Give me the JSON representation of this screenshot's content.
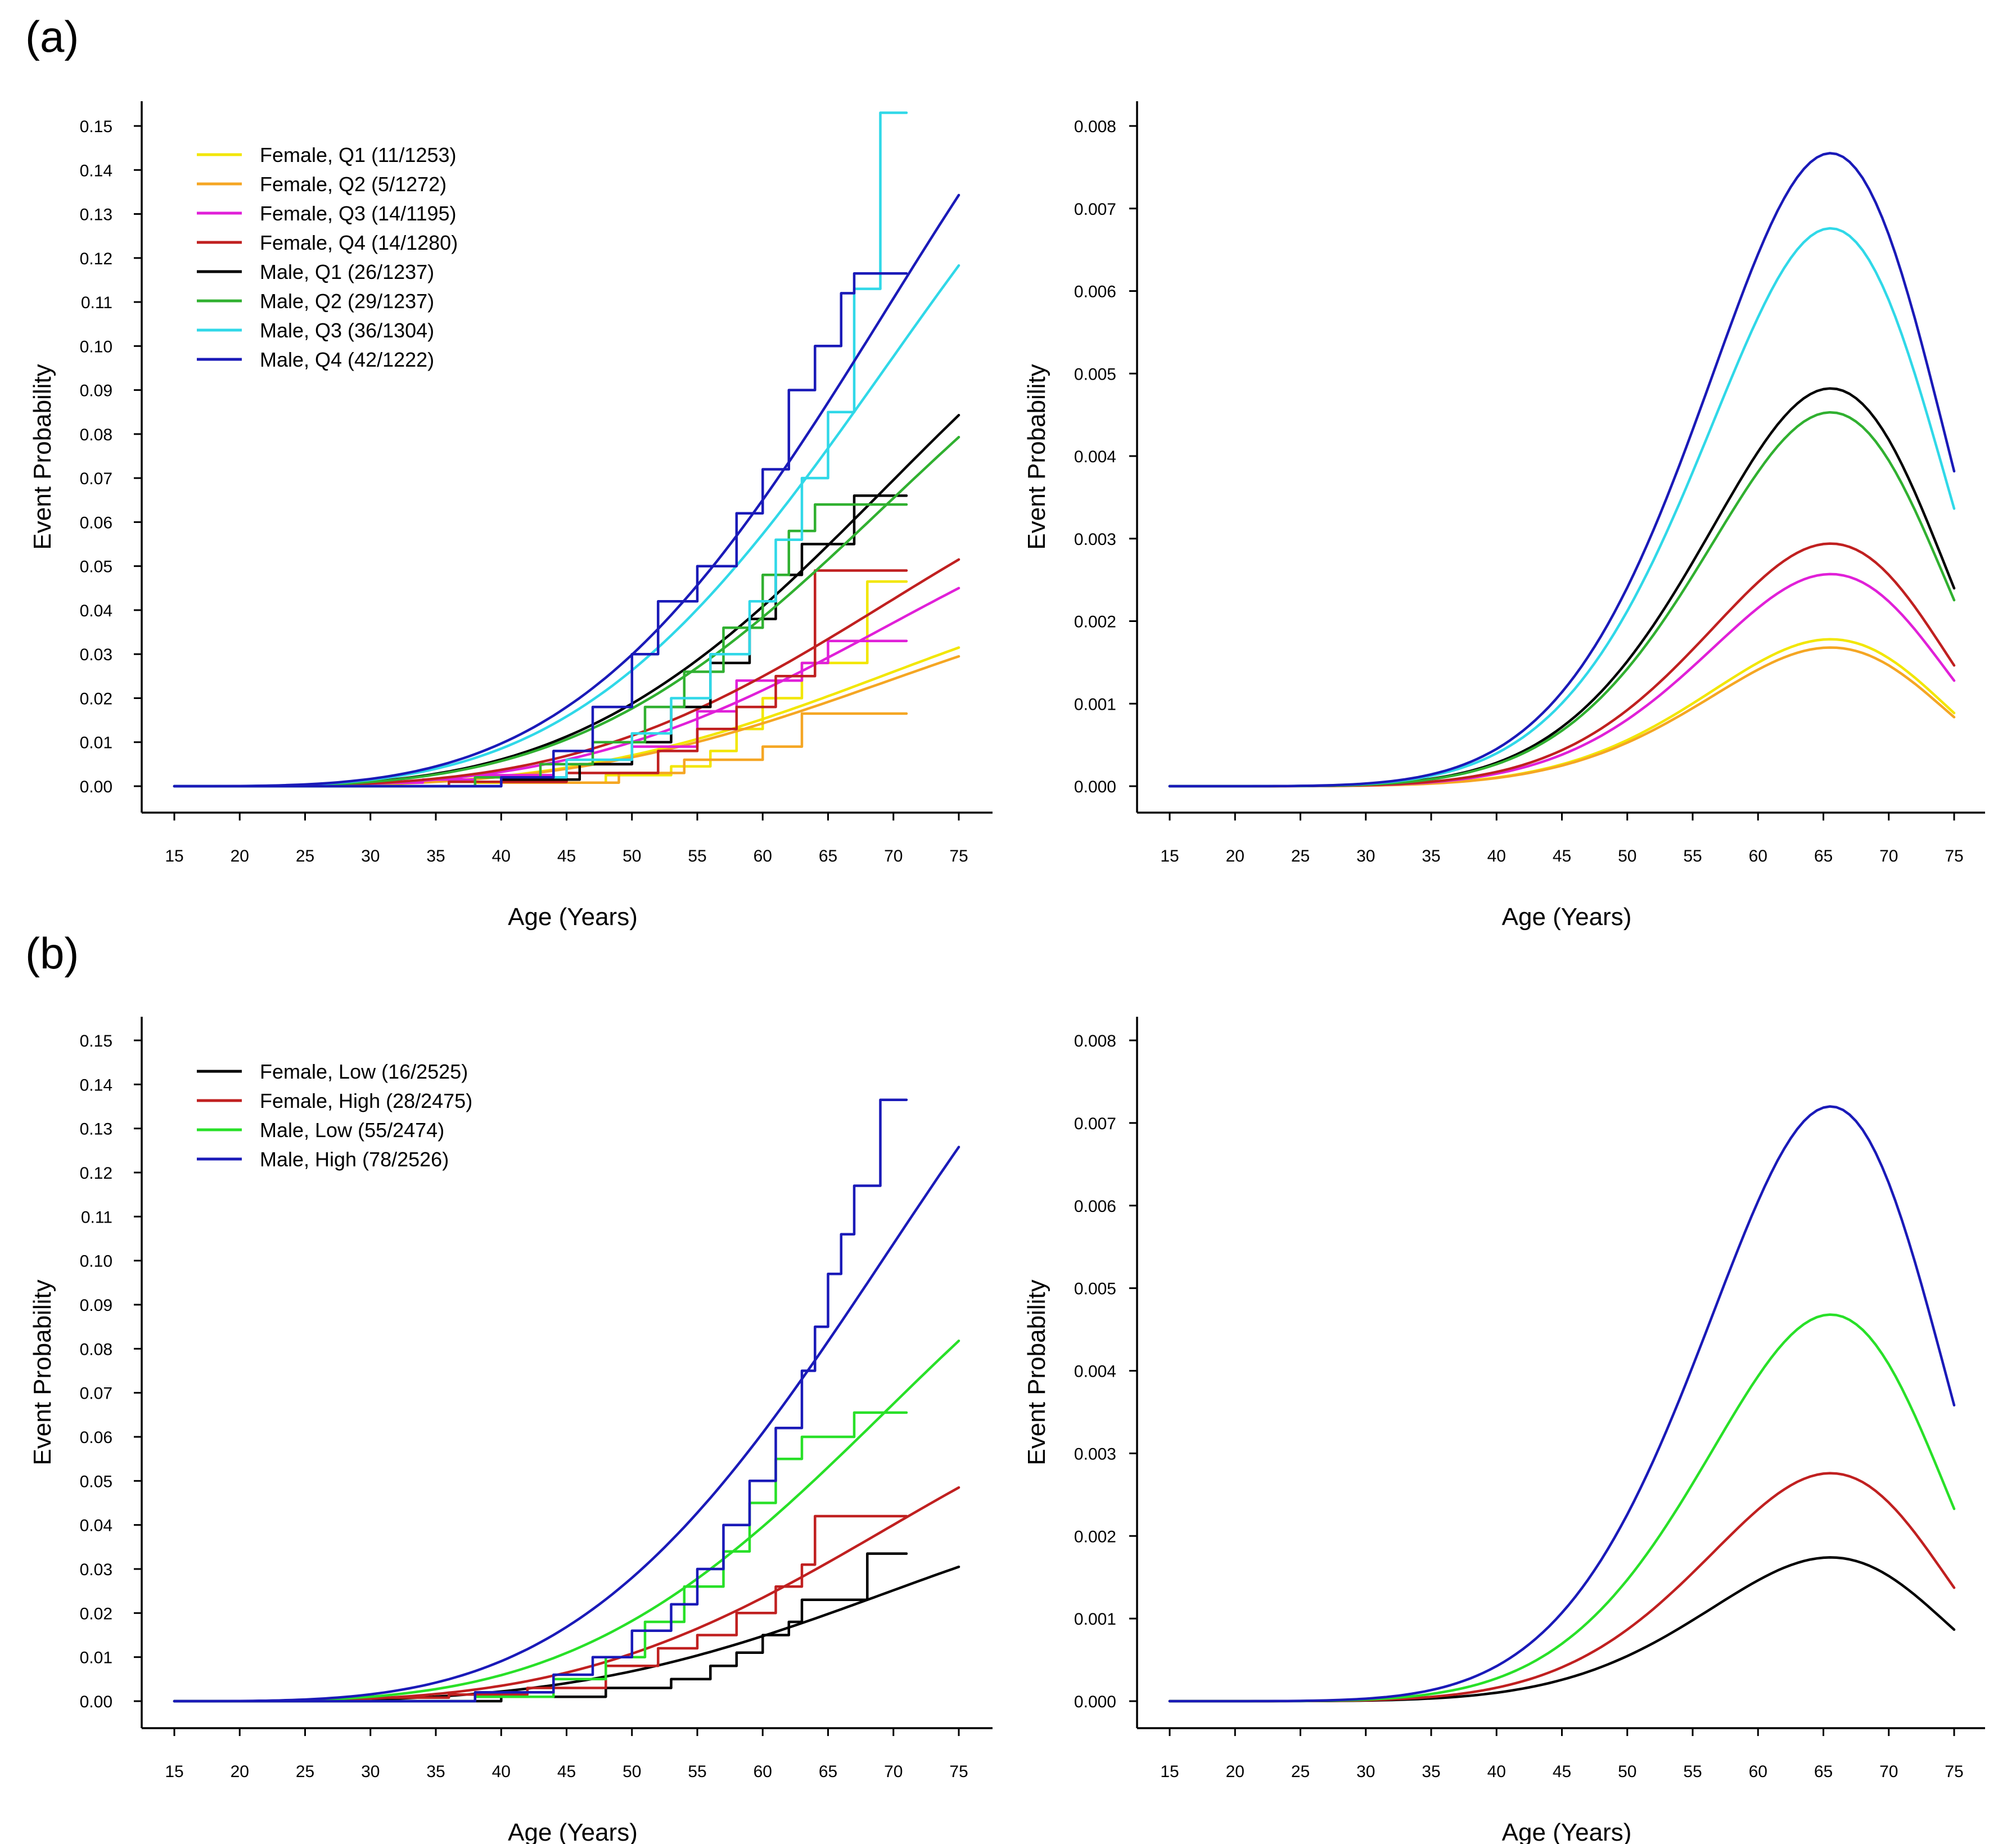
{
  "panels": [
    {
      "label": "(a)"
    },
    {
      "label": "(b)"
    }
  ],
  "colors": {
    "yellow": "#f2e600",
    "orange": "#f5a623",
    "magenta": "#e020d8",
    "darkred": "#c02020",
    "black": "#000000",
    "green": "#30b030",
    "cyan": "#30d8e8",
    "navy": "#1a1ab8",
    "brightgreen": "#28e028"
  },
  "chart_data": [
    {
      "id": "a-left",
      "type": "line",
      "panel": "(a)",
      "title": "",
      "xlabel": "Age (Years)",
      "ylabel": "Event Probability",
      "xlim": [
        15,
        75
      ],
      "ylim": [
        0,
        0.15
      ],
      "xticks": [
        "15",
        "20",
        "25",
        "30",
        "35",
        "40",
        "45",
        "50",
        "55",
        "60",
        "65",
        "70",
        "75"
      ],
      "yticks": [
        "0.00",
        "0.01",
        "0.02",
        "0.03",
        "0.04",
        "0.05",
        "0.06",
        "0.07",
        "0.08",
        "0.09",
        "0.10",
        "0.11",
        "0.12",
        "0.13",
        "0.14",
        "0.15"
      ],
      "legend_position": "top-left",
      "series": [
        {
          "name": "Female, Q1 (11/1253)",
          "color": "#f2e600",
          "final": 0.0315,
          "km_x": [
            15,
            38,
            48,
            53,
            56,
            58,
            60,
            63,
            68,
            71
          ],
          "km_y": [
            0,
            0.0008,
            0.0025,
            0.0045,
            0.008,
            0.013,
            0.02,
            0.028,
            0.0465,
            0.0465
          ]
        },
        {
          "name": "Female, Q2 (5/1272)",
          "color": "#f5a623",
          "final": 0.0295,
          "km_x": [
            15,
            40,
            49,
            54,
            60,
            63,
            71
          ],
          "km_y": [
            0,
            0.0008,
            0.003,
            0.006,
            0.009,
            0.0165,
            0.0165
          ]
        },
        {
          "name": "Female, Q3 (14/1195)",
          "color": "#e020d8",
          "final": 0.045,
          "km_x": [
            15,
            30,
            34,
            38,
            44,
            50,
            55,
            58,
            63,
            65,
            67,
            71
          ],
          "km_y": [
            0,
            0.0008,
            0.0015,
            0.0025,
            0.005,
            0.009,
            0.017,
            0.024,
            0.028,
            0.033,
            0.033,
            0.033
          ]
        },
        {
          "name": "Female, Q4 (14/1280)",
          "color": "#c02020",
          "final": 0.0515,
          "km_x": [
            15,
            36,
            45,
            52,
            55,
            58,
            61,
            64,
            67,
            71
          ],
          "km_y": [
            0,
            0.001,
            0.003,
            0.008,
            0.013,
            0.018,
            0.025,
            0.049,
            0.049,
            0.049
          ]
        },
        {
          "name": "Male, Q1 (26/1237)",
          "color": "#000000",
          "final": 0.0843,
          "km_x": [
            15,
            40,
            46,
            50,
            53,
            56,
            59,
            61,
            63,
            67,
            71
          ],
          "km_y": [
            0,
            0.0015,
            0.005,
            0.01,
            0.018,
            0.028,
            0.038,
            0.048,
            0.055,
            0.066,
            0.066
          ]
        },
        {
          "name": "Male, Q2 (29/1237)",
          "color": "#30b030",
          "final": 0.0793,
          "km_x": [
            15,
            38,
            43,
            47,
            51,
            54,
            57,
            60,
            62,
            64,
            71
          ],
          "km_y": [
            0,
            0.002,
            0.005,
            0.01,
            0.018,
            0.026,
            0.036,
            0.048,
            0.058,
            0.064,
            0.064
          ]
        },
        {
          "name": "Male, Q3 (36/1304)",
          "color": "#30d8e8",
          "final": 0.1183,
          "km_x": [
            15,
            40,
            45,
            50,
            53,
            56,
            59,
            61,
            63,
            65,
            67,
            69,
            71
          ],
          "km_y": [
            0,
            0.002,
            0.006,
            0.012,
            0.02,
            0.03,
            0.042,
            0.056,
            0.07,
            0.085,
            0.113,
            0.153,
            0.153
          ]
        },
        {
          "name": "Male, Q4 (42/1222)",
          "color": "#1a1ab8",
          "final": 0.1343,
          "km_x": [
            15,
            40,
            44,
            47,
            50,
            52,
            55,
            58,
            60,
            62,
            64,
            66,
            67,
            71
          ],
          "km_y": [
            0,
            0.002,
            0.008,
            0.018,
            0.03,
            0.042,
            0.05,
            0.062,
            0.072,
            0.09,
            0.1,
            0.112,
            0.1165,
            0.1165
          ]
        }
      ]
    },
    {
      "id": "a-right",
      "type": "line",
      "panel": "(a)",
      "title": "",
      "xlabel": "Age (Years)",
      "ylabel": "Event Probability",
      "xlim": [
        15,
        75
      ],
      "ylim": [
        0,
        0.008
      ],
      "xticks": [
        "15",
        "20",
        "25",
        "30",
        "35",
        "40",
        "45",
        "50",
        "55",
        "60",
        "65",
        "70",
        "75"
      ],
      "yticks": [
        "0.000",
        "0.001",
        "0.002",
        "0.003",
        "0.004",
        "0.005",
        "0.006",
        "0.007",
        "0.008"
      ],
      "series": [
        {
          "name": "Female, Q1",
          "color": "#f2e600",
          "peak": 0.00178
        },
        {
          "name": "Female, Q2",
          "color": "#f5a623",
          "peak": 0.00168
        },
        {
          "name": "Female, Q3",
          "color": "#e020d8",
          "peak": 0.00257
        },
        {
          "name": "Female, Q4",
          "color": "#c02020",
          "peak": 0.00294
        },
        {
          "name": "Male, Q1",
          "color": "#000000",
          "peak": 0.00482
        },
        {
          "name": "Male, Q2",
          "color": "#30b030",
          "peak": 0.00453
        },
        {
          "name": "Male, Q3",
          "color": "#30d8e8",
          "peak": 0.00676
        },
        {
          "name": "Male, Q4",
          "color": "#1a1ab8",
          "peak": 0.00767
        }
      ]
    },
    {
      "id": "b-left",
      "type": "line",
      "panel": "(b)",
      "title": "",
      "xlabel": "Age (Years)",
      "ylabel": "Event Probability",
      "xlim": [
        15,
        75
      ],
      "ylim": [
        0,
        0.15
      ],
      "xticks": [
        "15",
        "20",
        "25",
        "30",
        "35",
        "40",
        "45",
        "50",
        "55",
        "60",
        "65",
        "70",
        "75"
      ],
      "yticks": [
        "0.00",
        "0.01",
        "0.02",
        "0.03",
        "0.04",
        "0.05",
        "0.06",
        "0.07",
        "0.08",
        "0.09",
        "0.10",
        "0.11",
        "0.12",
        "0.13",
        "0.14",
        "0.15"
      ],
      "legend_position": "top-left",
      "series": [
        {
          "name": "Female, Low (16/2525)",
          "color": "#000000",
          "final": 0.0305,
          "km_x": [
            15,
            40,
            48,
            53,
            56,
            58,
            60,
            62,
            63,
            65,
            68,
            71
          ],
          "km_y": [
            0,
            0.001,
            0.003,
            0.005,
            0.008,
            0.011,
            0.015,
            0.018,
            0.023,
            0.023,
            0.0335,
            0.0335
          ]
        },
        {
          "name": "Female, High (28/2475)",
          "color": "#c02020",
          "final": 0.0485,
          "km_x": [
            15,
            30,
            36,
            42,
            48,
            52,
            55,
            58,
            61,
            63,
            64,
            67,
            71
          ],
          "km_y": [
            0,
            0.0008,
            0.0015,
            0.003,
            0.008,
            0.012,
            0.015,
            0.02,
            0.026,
            0.031,
            0.042,
            0.042,
            0.042
          ]
        },
        {
          "name": "Male, Low (55/2474)",
          "color": "#28e028",
          "final": 0.0818,
          "km_x": [
            15,
            38,
            44,
            48,
            51,
            54,
            57,
            59,
            61,
            63,
            65,
            67,
            71
          ],
          "km_y": [
            0,
            0.001,
            0.005,
            0.01,
            0.018,
            0.026,
            0.034,
            0.045,
            0.055,
            0.06,
            0.06,
            0.0655,
            0.0655
          ]
        },
        {
          "name": "Male, High (78/2526)",
          "color": "#1a1ab8",
          "final": 0.1258,
          "km_x": [
            15,
            38,
            44,
            47,
            50,
            53,
            55,
            57,
            59,
            61,
            63,
            64,
            65,
            66,
            67,
            69,
            71
          ],
          "km_y": [
            0,
            0.002,
            0.006,
            0.01,
            0.016,
            0.022,
            0.03,
            0.04,
            0.05,
            0.062,
            0.075,
            0.085,
            0.097,
            0.106,
            0.117,
            0.1365,
            0.1365
          ]
        }
      ]
    },
    {
      "id": "b-right",
      "type": "line",
      "panel": "(b)",
      "title": "",
      "xlabel": "Age (Years)",
      "ylabel": "Event Probability",
      "xlim": [
        15,
        75
      ],
      "ylim": [
        0,
        0.008
      ],
      "xticks": [
        "15",
        "20",
        "25",
        "30",
        "35",
        "40",
        "45",
        "50",
        "55",
        "60",
        "65",
        "70",
        "75"
      ],
      "yticks": [
        "0.000",
        "0.001",
        "0.002",
        "0.003",
        "0.004",
        "0.005",
        "0.006",
        "0.007",
        "0.008"
      ],
      "series": [
        {
          "name": "Female, Low",
          "color": "#000000",
          "peak": 0.00174
        },
        {
          "name": "Female, High",
          "color": "#c02020",
          "peak": 0.00276
        },
        {
          "name": "Male, Low",
          "color": "#28e028",
          "peak": 0.00468
        },
        {
          "name": "Male, High",
          "color": "#1a1ab8",
          "peak": 0.0072
        }
      ]
    }
  ]
}
